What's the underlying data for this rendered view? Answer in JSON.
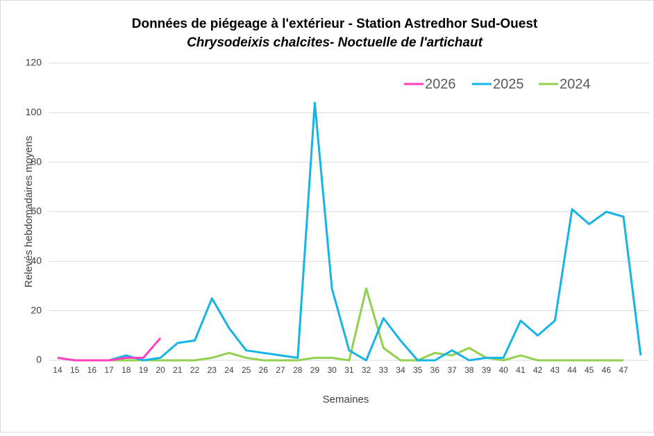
{
  "chart_data": {
    "type": "line",
    "title": "Données de piégeage à l'extérieur - Station Astredhor Sud-Ouest",
    "subtitle": "Chrysodeixis chalcites- Noctuelle de l'artichaut",
    "x_label": "Semaines",
    "y_label": "Relevés hebdomadaires  moyens",
    "categories": [
      "14",
      "15",
      "16",
      "17",
      "18",
      "19",
      "20",
      "21",
      "22",
      "23",
      "24",
      "25",
      "26",
      "27",
      "28",
      "29",
      "30",
      "31",
      "32",
      "33",
      "34",
      "35",
      "36",
      "37",
      "38",
      "39",
      "40",
      "41",
      "42",
      "43",
      "44",
      "45",
      "46",
      "47",
      null
    ],
    "series": [
      {
        "name": "2026",
        "color": "#ff3fbf",
        "values": [
          1,
          0,
          0,
          0,
          1,
          1,
          9,
          null,
          null,
          null,
          null,
          null,
          null,
          null,
          null,
          null,
          null,
          null,
          null,
          null,
          null,
          null,
          null,
          null,
          null,
          null,
          null,
          null,
          null,
          null,
          null,
          null,
          null,
          null,
          null
        ]
      },
      {
        "name": "2025",
        "color": "#14b4e6",
        "values": [
          null,
          null,
          null,
          0,
          2,
          0,
          1,
          7,
          8,
          25,
          13,
          4,
          3,
          2,
          1,
          104,
          29,
          4,
          0,
          17,
          8,
          0,
          0,
          4,
          0,
          1,
          1,
          16,
          10,
          16,
          61,
          55,
          60,
          58,
          2
        ]
      },
      {
        "name": "2024",
        "color": "#92d050",
        "values": [
          null,
          0,
          0,
          0,
          0,
          0,
          0,
          0,
          0,
          1,
          3,
          1,
          0,
          0,
          0,
          1,
          1,
          0,
          29,
          5,
          0,
          0,
          3,
          2,
          5,
          1,
          0,
          2,
          0,
          0,
          0,
          0,
          0,
          0,
          null
        ]
      }
    ],
    "ylim": [
      0,
      120
    ],
    "yticks": [
      0,
      20,
      40,
      60,
      80,
      100,
      120
    ],
    "grid": true,
    "legend": "top-right"
  }
}
